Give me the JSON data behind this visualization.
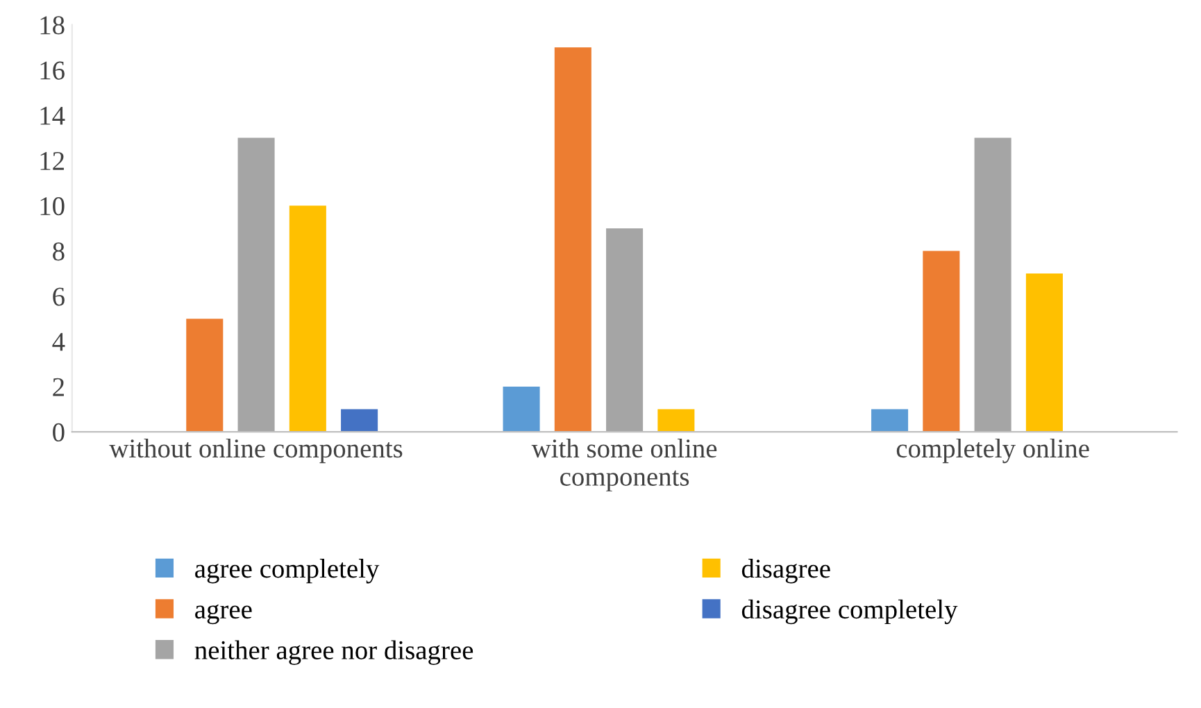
{
  "chart_data": {
    "type": "bar",
    "categories": [
      "without online components",
      "with some online components",
      "completely online"
    ],
    "series": [
      {
        "name": "agree completely",
        "color": "#5b9bd5",
        "values": [
          0,
          2,
          1
        ]
      },
      {
        "name": "agree",
        "color": "#ed7d31",
        "values": [
          5,
          17,
          8
        ]
      },
      {
        "name": "neither agree nor disagree",
        "color": "#a5a5a5",
        "values": [
          13,
          9,
          13
        ]
      },
      {
        "name": "disagree",
        "color": "#ffc000",
        "values": [
          10,
          1,
          7
        ]
      },
      {
        "name": "disagree completely",
        "color": "#4472c4",
        "values": [
          1,
          0,
          0
        ]
      }
    ],
    "ylim": [
      0,
      18
    ],
    "yticks": [
      0,
      2,
      4,
      6,
      8,
      10,
      12,
      14,
      16,
      18
    ],
    "grid": false,
    "legend": "bottom"
  }
}
